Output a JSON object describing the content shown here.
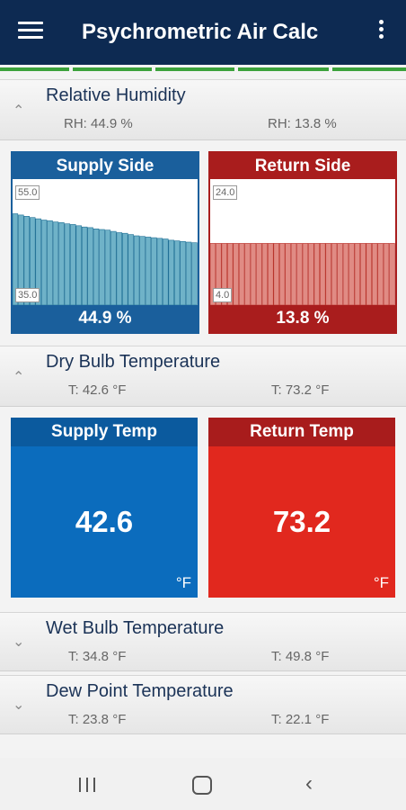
{
  "appbar": {
    "title": "Psychrometric Air Calc",
    "menu_icon": "hamburger-icon",
    "overflow_icon": "kebab-icon"
  },
  "colors": {
    "appbar": "#0d2a52",
    "accent_green": "#3ca23c",
    "supply_blue": "#1a5f9c",
    "return_red": "#a91d1d",
    "supply_temp_blue": "#0b6cbd",
    "return_temp_red": "#e1281e"
  },
  "humidity": {
    "title": "Relative Humidity",
    "supply_value": "RH: 44.9 %",
    "return_value": "RH: 13.8 %",
    "supply_panel": {
      "header": "Supply Side",
      "footer": "44.9 %",
      "tick_top": "55.0",
      "tick_bottom": "35.0",
      "ylim": [
        35,
        55
      ],
      "values": [
        49.5,
        49.3,
        49.1,
        48.9,
        48.7,
        48.5,
        48.4,
        48.2,
        48.1,
        47.9,
        47.8,
        47.6,
        47.4,
        47.3,
        47.1,
        47.0,
        46.9,
        46.7,
        46.5,
        46.4,
        46.2,
        46.0,
        45.9,
        45.8,
        45.7,
        45.6,
        45.5,
        45.3,
        45.2,
        45.1,
        45.0,
        44.9
      ]
    },
    "return_panel": {
      "header": "Return Side",
      "footer": "13.8 %",
      "tick_top": "24.0",
      "tick_bottom": "4.0",
      "ylim": [
        4,
        24
      ],
      "values": [
        13.8,
        13.8,
        13.8,
        13.8,
        13.8,
        13.8,
        13.8,
        13.8,
        13.8,
        13.8,
        13.8,
        13.8,
        13.8,
        13.8,
        13.8,
        13.8,
        13.8,
        13.8,
        13.8,
        13.8,
        13.8,
        13.8,
        13.8,
        13.8,
        13.8,
        13.8,
        13.8,
        13.8,
        13.8,
        13.8,
        13.8,
        13.8
      ]
    }
  },
  "dry_bulb": {
    "title": "Dry Bulb Temperature",
    "supply_value": "T: 42.6 °F",
    "return_value": "T: 73.2 °F",
    "supply_panel": {
      "header": "Supply Temp",
      "value": "42.6",
      "unit": "°F"
    },
    "return_panel": {
      "header": "Return Temp",
      "value": "73.2",
      "unit": "°F"
    }
  },
  "wet_bulb": {
    "title": "Wet Bulb Temperature",
    "supply_value": "T: 34.8 °F",
    "return_value": "T: 49.8 °F"
  },
  "dew_point": {
    "title": "Dew Point Temperature",
    "supply_value": "T: 23.8 °F",
    "return_value": "T: 22.1 °F"
  },
  "navbar": {
    "recent_icon": "recent-apps-icon",
    "home_icon": "home-icon",
    "back_icon": "back-icon"
  }
}
